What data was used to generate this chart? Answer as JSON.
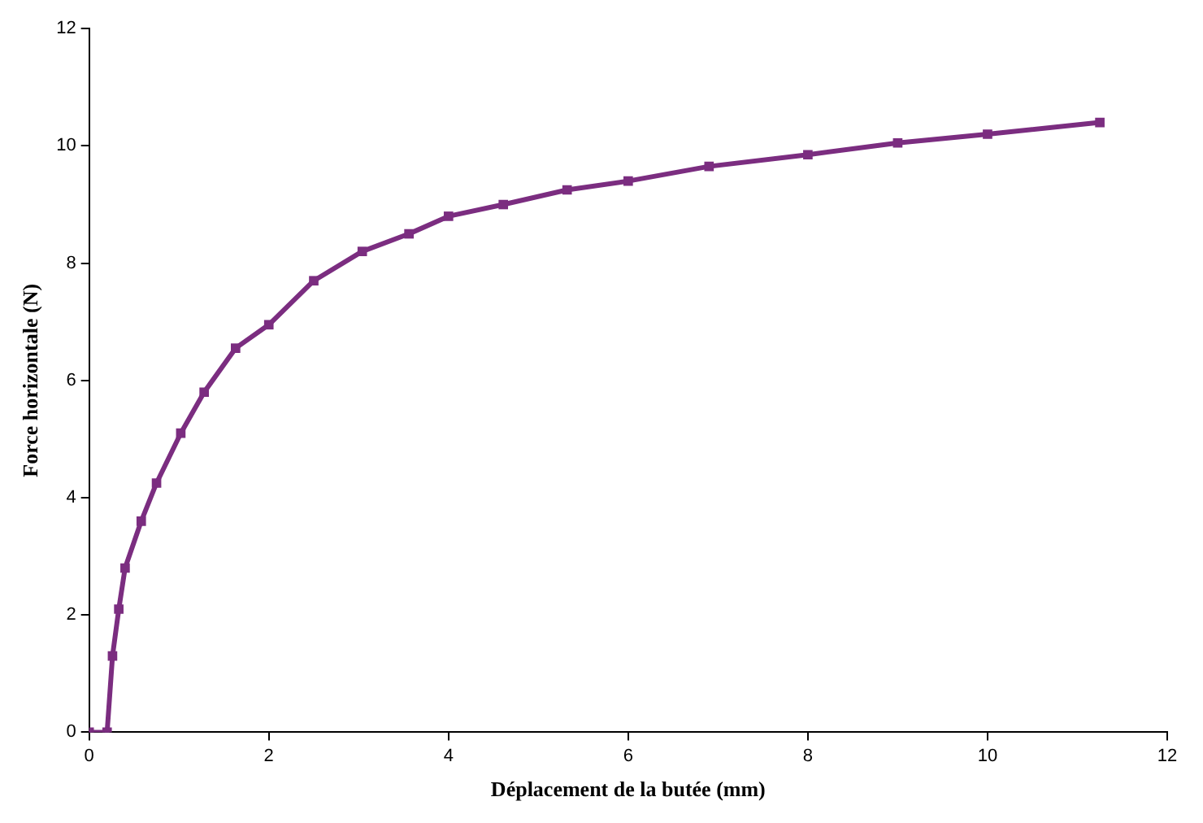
{
  "chart_data": {
    "type": "line",
    "xlabel": "Déplacement de la butée (mm)",
    "ylabel": "Force horizontale (N)",
    "x": [
      0,
      0.2,
      0.26,
      0.33,
      0.4,
      0.58,
      0.75,
      1.02,
      1.28,
      1.63,
      2.0,
      2.5,
      3.04,
      3.56,
      4.0,
      4.61,
      5.32,
      6.0,
      6.9,
      8.0,
      9.0,
      10.0,
      11.25
    ],
    "series": [
      {
        "color": "#7b2d80",
        "values": [
          0,
          0,
          1.3,
          2.1,
          2.8,
          3.6,
          4.25,
          5.1,
          5.8,
          6.55,
          6.95,
          7.7,
          8.2,
          8.5,
          8.8,
          9.0,
          9.25,
          9.4,
          9.65,
          9.85,
          10.05,
          10.2,
          10.4
        ]
      }
    ],
    "xlim": [
      0,
      12
    ],
    "xticks": [
      0,
      2,
      4,
      6,
      8,
      10,
      12
    ],
    "ylim": [
      0,
      12
    ],
    "yticks": [
      0,
      2,
      4,
      6,
      8,
      10,
      12
    ],
    "grid": false,
    "legend": false,
    "marker": "square",
    "line_style": "solid"
  }
}
